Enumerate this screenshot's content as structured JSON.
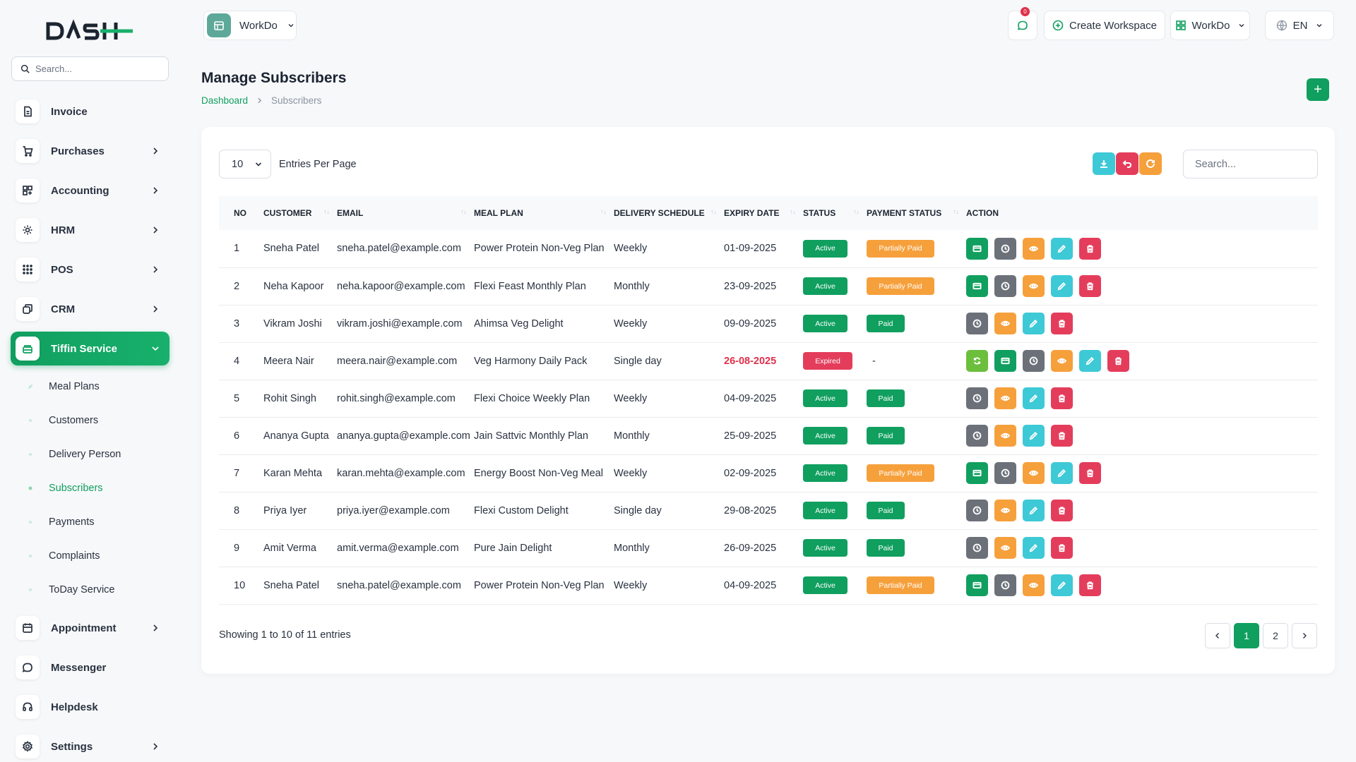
{
  "sidebar": {
    "logo_text": "DASH",
    "search_placeholder": "Search...",
    "items": [
      {
        "label": "Invoice",
        "icon": "file-icon",
        "has_children": false
      },
      {
        "label": "Purchases",
        "icon": "cart-icon",
        "has_children": true
      },
      {
        "label": "Accounting",
        "icon": "grid-icon",
        "has_children": true
      },
      {
        "label": "HRM",
        "icon": "hrm-icon",
        "has_children": true
      },
      {
        "label": "POS",
        "icon": "pos-icon",
        "has_children": true
      },
      {
        "label": "CRM",
        "icon": "crm-icon",
        "has_children": true
      },
      {
        "label": "Tiffin Service",
        "icon": "tiffin-icon",
        "has_children": true,
        "active": true
      }
    ],
    "tiffin_children": [
      "Meal Plans",
      "Customers",
      "Delivery Person",
      "Subscribers",
      "Payments",
      "Complaints",
      "ToDay Service"
    ],
    "current_child": "Subscribers",
    "bottom_items": [
      {
        "label": "Appointment",
        "icon": "calendar-icon",
        "has_children": true
      },
      {
        "label": "Messenger",
        "icon": "chat-icon",
        "has_children": false
      },
      {
        "label": "Helpdesk",
        "icon": "headset-icon",
        "has_children": false
      },
      {
        "label": "Settings",
        "icon": "gear-icon",
        "has_children": true
      }
    ]
  },
  "header": {
    "workspace_name": "WorkDo",
    "notification_count": "0",
    "create_workspace_label": "Create Workspace",
    "user_workspace": "WorkDo",
    "language": "EN"
  },
  "page": {
    "title": "Manage Subscribers",
    "breadcrumb": [
      "Dashboard",
      "Subscribers"
    ],
    "add_button": "+"
  },
  "table_controls": {
    "per_page": "10",
    "per_page_label": "Entries Per Page",
    "search_placeholder": "Search..."
  },
  "columns": [
    "NO",
    "CUSTOMER",
    "EMAIL",
    "MEAL PLAN",
    "DELIVERY SCHEDULE",
    "EXPIRY DATE",
    "STATUS",
    "PAYMENT STATUS",
    "ACTION"
  ],
  "rows": [
    {
      "no": "1",
      "customer": "Sneha Patel",
      "email": "sneha.patel@example.com",
      "meal_plan": "Power Protein Non-Veg Plan",
      "schedule": "Weekly",
      "expiry": "01-09-2025",
      "status": "Active",
      "payment": "Partially Paid",
      "actions": [
        "credit",
        "history",
        "view",
        "edit",
        "delete"
      ]
    },
    {
      "no": "2",
      "customer": "Neha Kapoor",
      "email": "neha.kapoor@example.com",
      "meal_plan": "Flexi Feast Monthly Plan",
      "schedule": "Monthly",
      "expiry": "23-09-2025",
      "status": "Active",
      "payment": "Partially Paid",
      "actions": [
        "credit",
        "history",
        "view",
        "edit",
        "delete"
      ]
    },
    {
      "no": "3",
      "customer": "Vikram Joshi",
      "email": "vikram.joshi@example.com",
      "meal_plan": "Ahimsa Veg Delight",
      "schedule": "Weekly",
      "expiry": "09-09-2025",
      "status": "Active",
      "payment": "Paid",
      "actions": [
        "history",
        "view",
        "edit",
        "delete"
      ]
    },
    {
      "no": "4",
      "customer": "Meera Nair",
      "email": "meera.nair@example.com",
      "meal_plan": "Veg Harmony Daily Pack",
      "schedule": "Single day",
      "expiry": "26-08-2025",
      "status": "Expired",
      "payment": "-",
      "actions": [
        "renew",
        "credit",
        "history",
        "view",
        "edit",
        "delete"
      ]
    },
    {
      "no": "5",
      "customer": "Rohit Singh",
      "email": "rohit.singh@example.com",
      "meal_plan": "Flexi Choice Weekly Plan",
      "schedule": "Weekly",
      "expiry": "04-09-2025",
      "status": "Active",
      "payment": "Paid",
      "actions": [
        "history",
        "view",
        "edit",
        "delete"
      ]
    },
    {
      "no": "6",
      "customer": "Ananya Gupta",
      "email": "ananya.gupta@example.com",
      "meal_plan": "Jain Sattvic Monthly Plan",
      "schedule": "Monthly",
      "expiry": "25-09-2025",
      "status": "Active",
      "payment": "Paid",
      "actions": [
        "history",
        "view",
        "edit",
        "delete"
      ]
    },
    {
      "no": "7",
      "customer": "Karan Mehta",
      "email": "karan.mehta@example.com",
      "meal_plan": "Energy Boost Non-Veg Meal",
      "schedule": "Weekly",
      "expiry": "02-09-2025",
      "status": "Active",
      "payment": "Partially Paid",
      "actions": [
        "credit",
        "history",
        "view",
        "edit",
        "delete"
      ]
    },
    {
      "no": "8",
      "customer": "Priya Iyer",
      "email": "priya.iyer@example.com",
      "meal_plan": "Flexi Custom Delight",
      "schedule": "Single day",
      "expiry": "29-08-2025",
      "status": "Active",
      "payment": "Paid",
      "actions": [
        "history",
        "view",
        "edit",
        "delete"
      ]
    },
    {
      "no": "9",
      "customer": "Amit Verma",
      "email": "amit.verma@example.com",
      "meal_plan": "Pure Jain Delight",
      "schedule": "Monthly",
      "expiry": "26-09-2025",
      "status": "Active",
      "payment": "Paid",
      "actions": [
        "history",
        "view",
        "edit",
        "delete"
      ]
    },
    {
      "no": "10",
      "customer": "Sneha Patel",
      "email": "sneha.patel@example.com",
      "meal_plan": "Power Protein Non-Veg Plan",
      "schedule": "Weekly",
      "expiry": "04-09-2025",
      "status": "Active",
      "payment": "Partially Paid",
      "actions": [
        "credit",
        "history",
        "view",
        "edit",
        "delete"
      ]
    }
  ],
  "footer": {
    "showing": "Showing 1 to 10 of 11 entries",
    "pages": [
      "1",
      "2"
    ],
    "current_page": "1"
  },
  "colors": {
    "brand_green": "#109f5f",
    "warning_orange": "#f6a03c",
    "danger_red": "#e43d5c",
    "info_cyan": "#3ec9d6",
    "neutral_gray": "#6b7079"
  }
}
